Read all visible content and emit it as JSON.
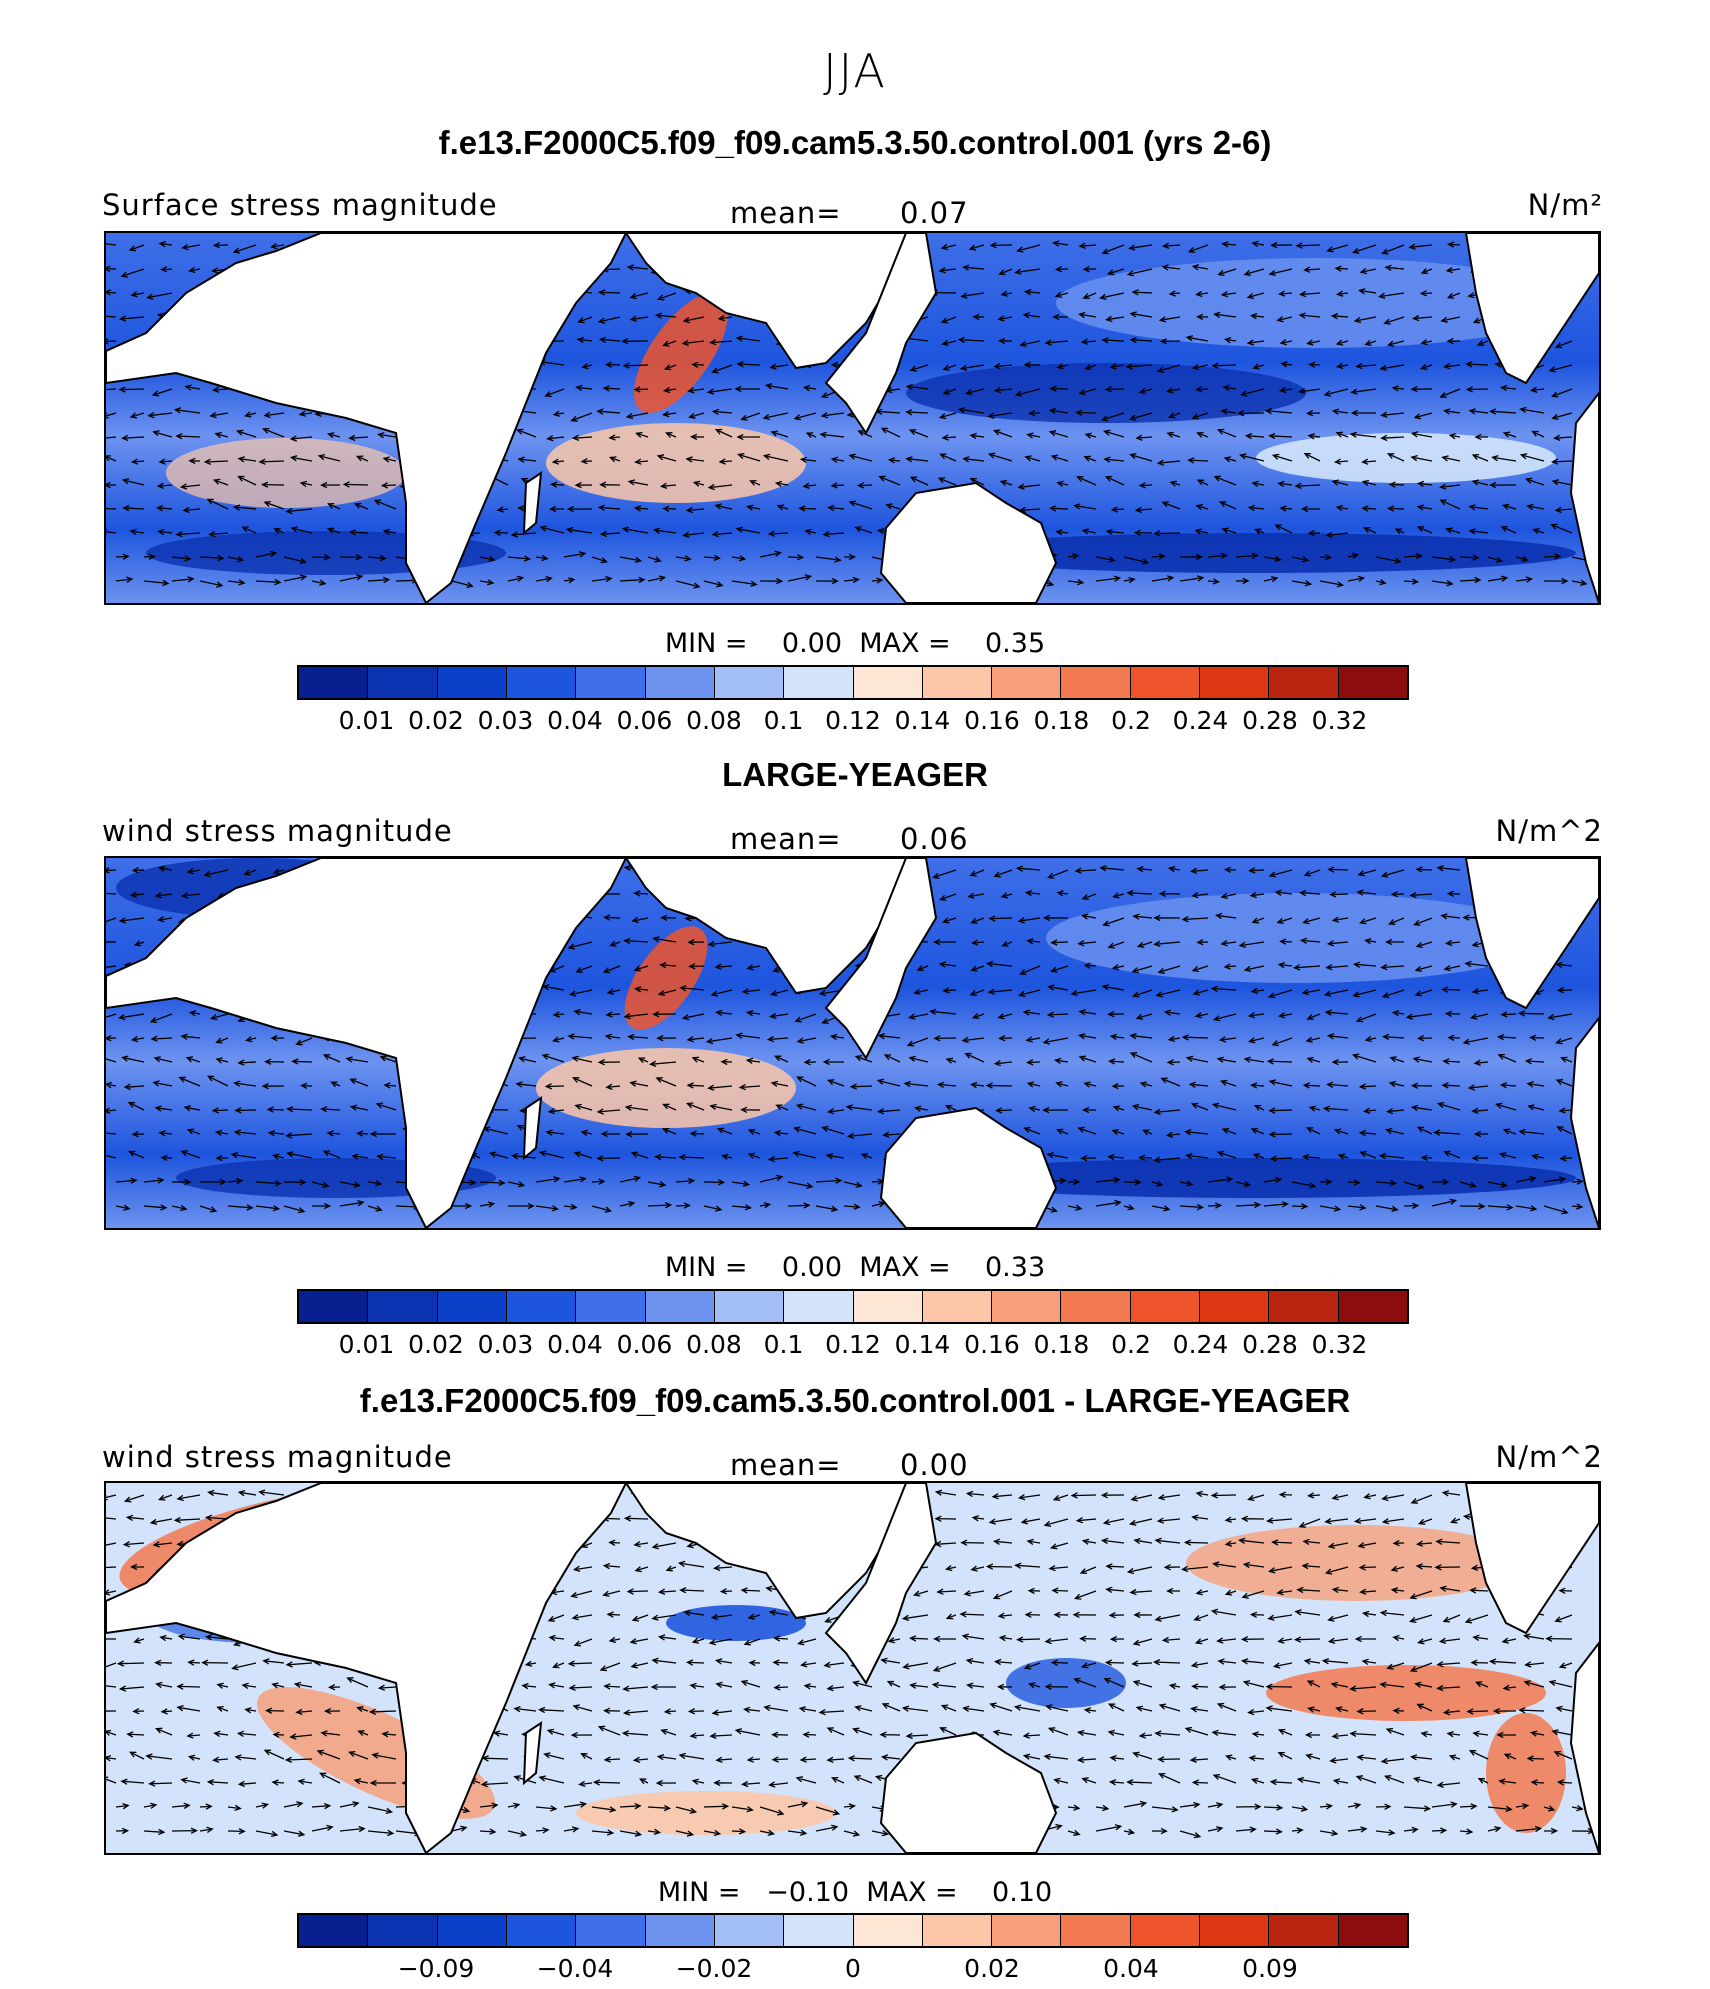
{
  "season": "JJA",
  "palette": [
    "#08208f",
    "#0b32b0",
    "#0d40c8",
    "#1e55de",
    "#3f6fe8",
    "#6d93f0",
    "#a3bdf6",
    "#d2e3fb",
    "#fde7d4",
    "#fbc7a8",
    "#f7a07a",
    "#f37a50",
    "#ee552c",
    "#dd3612",
    "#b92410",
    "#8c0d0d"
  ],
  "panels": [
    {
      "id": "model",
      "title": "f.e13.F2000C5.f09_f09.cam5.3.50.control.001 (yrs 2-6)",
      "variable": "Surface stress magnitude",
      "mean_label": "mean=",
      "mean_value": "0.07",
      "units": "N/m²",
      "min_label": "MIN =",
      "min_value": "0.00",
      "max_label": "MAX =",
      "max_value": "0.35",
      "tick_labels": [
        "0.01",
        "0.02",
        "0.03",
        "0.04",
        "0.06",
        "0.08",
        "0.1",
        "0.12",
        "0.14",
        "0.16",
        "0.18",
        "0.2",
        "0.24",
        "0.28",
        "0.32"
      ]
    },
    {
      "id": "obs",
      "title": "LARGE-YEAGER",
      "variable": "wind stress magnitude",
      "mean_label": "mean=",
      "mean_value": "0.06",
      "units": "N/m^2",
      "min_label": "MIN =",
      "min_value": "0.00",
      "max_label": "MAX =",
      "max_value": "0.33",
      "tick_labels": [
        "0.01",
        "0.02",
        "0.03",
        "0.04",
        "0.06",
        "0.08",
        "0.1",
        "0.12",
        "0.14",
        "0.16",
        "0.18",
        "0.2",
        "0.24",
        "0.28",
        "0.32"
      ]
    },
    {
      "id": "diff",
      "title": "f.e13.F2000C5.f09_f09.cam5.3.50.control.001 - LARGE-YEAGER",
      "variable": "wind stress magnitude",
      "mean_label": "mean=",
      "mean_value": "0.00",
      "units": "N/m^2",
      "min_label": "MIN =",
      "min_value": "−0.10",
      "max_label": "MAX =",
      "max_value": "0.10",
      "tick_labels": [
        "−0.09",
        "",
        "−0.04",
        "",
        "−0.02",
        "",
        "0",
        "",
        "0.02",
        "",
        "0.04",
        "",
        "0.09"
      ],
      "tick_positions": [
        2,
        3,
        4,
        5,
        6,
        7,
        8,
        9,
        10,
        11,
        12,
        13,
        14
      ]
    }
  ]
}
